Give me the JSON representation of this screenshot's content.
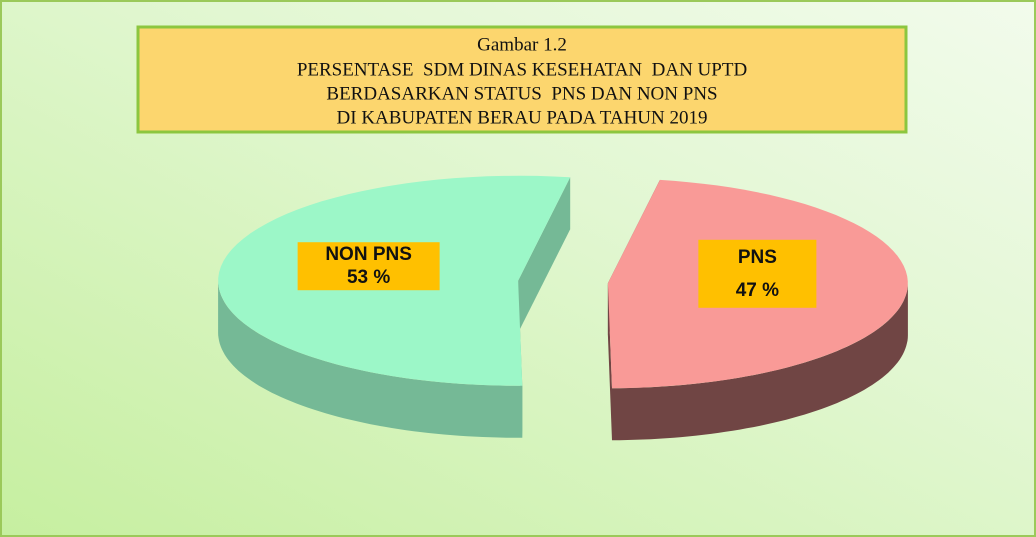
{
  "chart_data": {
    "type": "pie",
    "title": [
      "Gambar 1.2",
      "PERSENTASE  SDM DINAS KESEHATAN  DAN UPTD",
      "BERDASARKAN STATUS  PNS DAN NON PNS",
      "DI KABUPATEN BERAU PADA TAHUN 2019"
    ],
    "categories": [
      "NON PNS",
      "PNS"
    ],
    "values": [
      53,
      47
    ],
    "value_labels": [
      "53 %",
      "47 %"
    ],
    "colors": [
      "#9cf7c8",
      "#f99a97"
    ]
  }
}
